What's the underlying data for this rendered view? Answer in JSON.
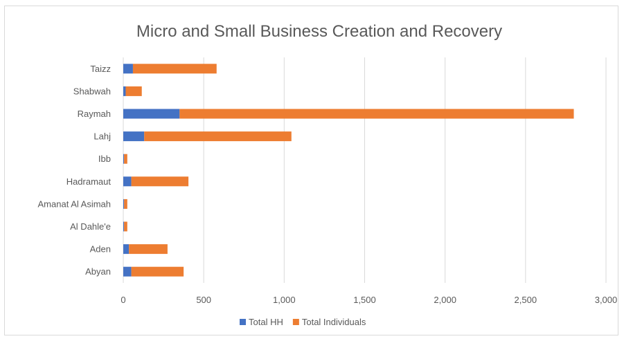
{
  "chart_data": {
    "type": "bar",
    "orientation": "horizontal",
    "stacked": true,
    "title": "Micro and Small Business Creation and Recovery",
    "categories": [
      "Taizz",
      "Shabwah",
      "Raymah",
      "Lahj",
      "Ibb",
      "Hadramaut",
      "Amanat Al Asimah",
      "Al Dahle'e",
      "Aden",
      "Abyan"
    ],
    "series": [
      {
        "name": "Total HH",
        "color": "#4472C4",
        "values": [
          60,
          15,
          350,
          130,
          5,
          50,
          5,
          5,
          35,
          50
        ]
      },
      {
        "name": "Total Individuals",
        "color": "#ED7D31",
        "values": [
          520,
          100,
          2450,
          915,
          20,
          355,
          20,
          20,
          240,
          325
        ]
      }
    ],
    "xlim": [
      0,
      3000
    ],
    "xticks": [
      "0",
      "500",
      "1,000",
      "1,500",
      "2,000",
      "2,500",
      "3,000"
    ],
    "xtick_values": [
      0,
      500,
      1000,
      1500,
      2000,
      2500,
      3000
    ],
    "grid": "vertical",
    "legend_position": "bottom"
  }
}
